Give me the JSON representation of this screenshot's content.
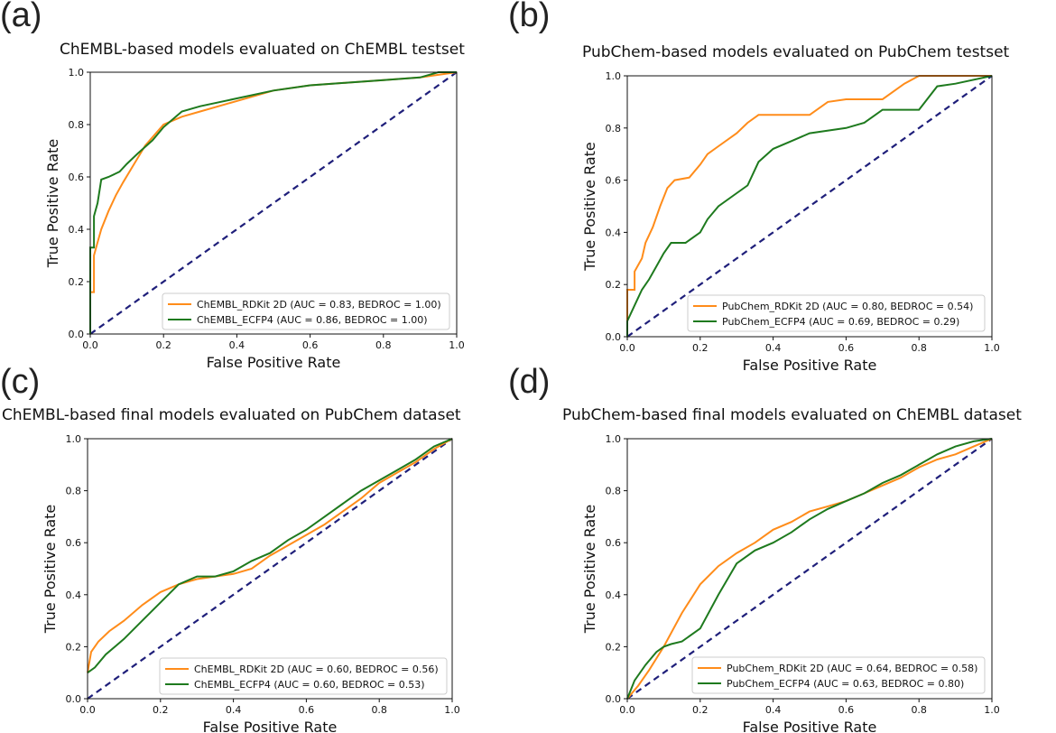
{
  "panel_letters": [
    "(a)",
    "(b)",
    "(c)",
    "(d)"
  ],
  "colors": {
    "rdkit": "#ff8c1a",
    "ecfp4": "#1e7a1e",
    "diagonal": "#1f1f7a",
    "axes": "#111111"
  },
  "chart_data": [
    {
      "type": "line",
      "title": "ChEMBL-based models evaluated on ChEMBL testset",
      "xlabel": "False Positive Rate",
      "ylabel": "True Positive Rate",
      "xlim": [
        0,
        1
      ],
      "ylim": [
        0,
        1
      ],
      "xticks": [
        "0.0",
        "0.2",
        "0.4",
        "0.6",
        "0.8",
        "1.0"
      ],
      "yticks": [
        "0.0",
        "0.2",
        "0.4",
        "0.6",
        "0.8",
        "1.0"
      ],
      "legend_position": "lower-right",
      "series": [
        {
          "name": "ChEMBL_RDKit 2D (AUC = 0.83, BEDROC = 1.00)",
          "color_key": "rdkit",
          "x": [
            0,
            0,
            0.01,
            0.01,
            0.02,
            0.03,
            0.05,
            0.07,
            0.09,
            0.12,
            0.15,
            0.2,
            0.25,
            0.3,
            0.4,
            0.5,
            0.6,
            0.7,
            0.8,
            0.9,
            1.0
          ],
          "y": [
            0,
            0.16,
            0.16,
            0.3,
            0.35,
            0.4,
            0.47,
            0.53,
            0.58,
            0.65,
            0.72,
            0.8,
            0.83,
            0.85,
            0.89,
            0.93,
            0.95,
            0.96,
            0.97,
            0.98,
            1.0
          ]
        },
        {
          "name": "ChEMBL_ECFP4 (AUC = 0.86, BEDROC = 1.00)",
          "color_key": "ecfp4",
          "x": [
            0,
            0,
            0.01,
            0.01,
            0.02,
            0.03,
            0.05,
            0.08,
            0.1,
            0.13,
            0.17,
            0.2,
            0.25,
            0.3,
            0.4,
            0.5,
            0.6,
            0.7,
            0.8,
            0.9,
            0.95,
            1.0
          ],
          "y": [
            0,
            0.33,
            0.33,
            0.45,
            0.5,
            0.59,
            0.6,
            0.62,
            0.65,
            0.69,
            0.74,
            0.79,
            0.85,
            0.87,
            0.9,
            0.93,
            0.95,
            0.96,
            0.97,
            0.98,
            1.0,
            1.0
          ]
        }
      ]
    },
    {
      "type": "line",
      "title": "PubChem-based models evaluated on PubChem testset",
      "xlabel": "False Positive Rate",
      "ylabel": "True Positive Rate",
      "xlim": [
        0,
        1
      ],
      "ylim": [
        0,
        1
      ],
      "xticks": [
        "0.0",
        "0.2",
        "0.4",
        "0.6",
        "0.8",
        "1.0"
      ],
      "yticks": [
        "0.0",
        "0.2",
        "0.4",
        "0.6",
        "0.8",
        "1.0"
      ],
      "legend_position": "lower-right",
      "series": [
        {
          "name": "PubChem_RDKit 2D (AUC = 0.80, BEDROC = 0.54)",
          "color_key": "rdkit",
          "x": [
            0,
            0,
            0.02,
            0.02,
            0.04,
            0.05,
            0.07,
            0.09,
            0.11,
            0.13,
            0.17,
            0.2,
            0.22,
            0.25,
            0.3,
            0.33,
            0.36,
            0.5,
            0.55,
            0.6,
            0.7,
            0.76,
            0.8,
            1.0
          ],
          "y": [
            0,
            0.18,
            0.18,
            0.25,
            0.3,
            0.36,
            0.42,
            0.5,
            0.57,
            0.6,
            0.61,
            0.66,
            0.7,
            0.73,
            0.78,
            0.82,
            0.85,
            0.85,
            0.9,
            0.91,
            0.91,
            0.97,
            1.0,
            1.0
          ]
        },
        {
          "name": "PubChem_ECFP4 (AUC = 0.69, BEDROC = 0.29)",
          "color_key": "ecfp4",
          "x": [
            0,
            0,
            0.02,
            0.04,
            0.06,
            0.08,
            0.1,
            0.12,
            0.16,
            0.2,
            0.22,
            0.25,
            0.3,
            0.33,
            0.36,
            0.4,
            0.45,
            0.5,
            0.6,
            0.65,
            0.7,
            0.8,
            0.85,
            0.9,
            1.0
          ],
          "y": [
            0,
            0.06,
            0.12,
            0.18,
            0.22,
            0.27,
            0.32,
            0.36,
            0.36,
            0.4,
            0.45,
            0.5,
            0.55,
            0.58,
            0.67,
            0.72,
            0.75,
            0.78,
            0.8,
            0.82,
            0.87,
            0.87,
            0.96,
            0.97,
            1.0
          ]
        }
      ]
    },
    {
      "type": "line",
      "title": "ChEMBL-based final models evaluated on PubChem dataset",
      "xlabel": "False Positive Rate",
      "ylabel": "True Positive Rate",
      "xlim": [
        0,
        1
      ],
      "ylim": [
        0,
        1
      ],
      "xticks": [
        "0.0",
        "0.2",
        "0.4",
        "0.6",
        "0.8",
        "1.0"
      ],
      "yticks": [
        "0.0",
        "0.2",
        "0.4",
        "0.6",
        "0.8",
        "1.0"
      ],
      "legend_position": "lower-right",
      "series": [
        {
          "name": "ChEMBL_RDKit 2D (AUC = 0.60, BEDROC = 0.56)",
          "color_key": "rdkit",
          "x": [
            0,
            0.01,
            0.03,
            0.06,
            0.1,
            0.15,
            0.2,
            0.25,
            0.3,
            0.35,
            0.4,
            0.45,
            0.5,
            0.55,
            0.6,
            0.65,
            0.7,
            0.75,
            0.8,
            0.85,
            0.9,
            0.95,
            1.0
          ],
          "y": [
            0.1,
            0.18,
            0.22,
            0.26,
            0.3,
            0.36,
            0.41,
            0.44,
            0.46,
            0.47,
            0.48,
            0.5,
            0.55,
            0.59,
            0.63,
            0.67,
            0.72,
            0.77,
            0.83,
            0.87,
            0.91,
            0.96,
            1.0
          ]
        },
        {
          "name": "ChEMBL_ECFP4 (AUC = 0.60, BEDROC = 0.53)",
          "color_key": "ecfp4",
          "x": [
            0,
            0.02,
            0.05,
            0.1,
            0.15,
            0.2,
            0.25,
            0.3,
            0.35,
            0.4,
            0.45,
            0.5,
            0.55,
            0.6,
            0.65,
            0.7,
            0.75,
            0.8,
            0.85,
            0.9,
            0.95,
            1.0
          ],
          "y": [
            0.1,
            0.12,
            0.17,
            0.23,
            0.3,
            0.37,
            0.44,
            0.47,
            0.47,
            0.49,
            0.53,
            0.56,
            0.61,
            0.65,
            0.7,
            0.75,
            0.8,
            0.84,
            0.88,
            0.92,
            0.97,
            1.0
          ]
        }
      ]
    },
    {
      "type": "line",
      "title": "PubChem-based final models evaluated on ChEMBL dataset",
      "xlabel": "False Positive Rate",
      "ylabel": "True Positive Rate",
      "xlim": [
        0,
        1
      ],
      "ylim": [
        0,
        1
      ],
      "xticks": [
        "0.0",
        "0.2",
        "0.4",
        "0.6",
        "0.8",
        "1.0"
      ],
      "yticks": [
        "0.0",
        "0.2",
        "0.4",
        "0.6",
        "0.8",
        "1.0"
      ],
      "legend_position": "lower-right",
      "series": [
        {
          "name": "PubChem_RDKit 2D (AUC = 0.64, BEDROC = 0.58)",
          "color_key": "rdkit",
          "x": [
            0,
            0.03,
            0.06,
            0.1,
            0.15,
            0.2,
            0.25,
            0.3,
            0.35,
            0.4,
            0.45,
            0.5,
            0.55,
            0.6,
            0.65,
            0.7,
            0.75,
            0.8,
            0.85,
            0.9,
            0.95,
            1.0
          ],
          "y": [
            0,
            0.05,
            0.11,
            0.2,
            0.33,
            0.44,
            0.51,
            0.56,
            0.6,
            0.65,
            0.68,
            0.72,
            0.74,
            0.76,
            0.79,
            0.82,
            0.85,
            0.89,
            0.92,
            0.94,
            0.97,
            1.0
          ]
        },
        {
          "name": "PubChem_ECFP4 (AUC = 0.63, BEDROC = 0.80)",
          "color_key": "ecfp4",
          "x": [
            0,
            0.02,
            0.05,
            0.08,
            0.1,
            0.12,
            0.15,
            0.2,
            0.25,
            0.3,
            0.35,
            0.4,
            0.45,
            0.5,
            0.55,
            0.6,
            0.65,
            0.7,
            0.75,
            0.8,
            0.85,
            0.9,
            0.95,
            1.0
          ],
          "y": [
            0,
            0.07,
            0.13,
            0.18,
            0.2,
            0.21,
            0.22,
            0.27,
            0.4,
            0.52,
            0.57,
            0.6,
            0.64,
            0.69,
            0.73,
            0.76,
            0.79,
            0.83,
            0.86,
            0.9,
            0.94,
            0.97,
            0.99,
            1.0
          ]
        }
      ]
    }
  ]
}
